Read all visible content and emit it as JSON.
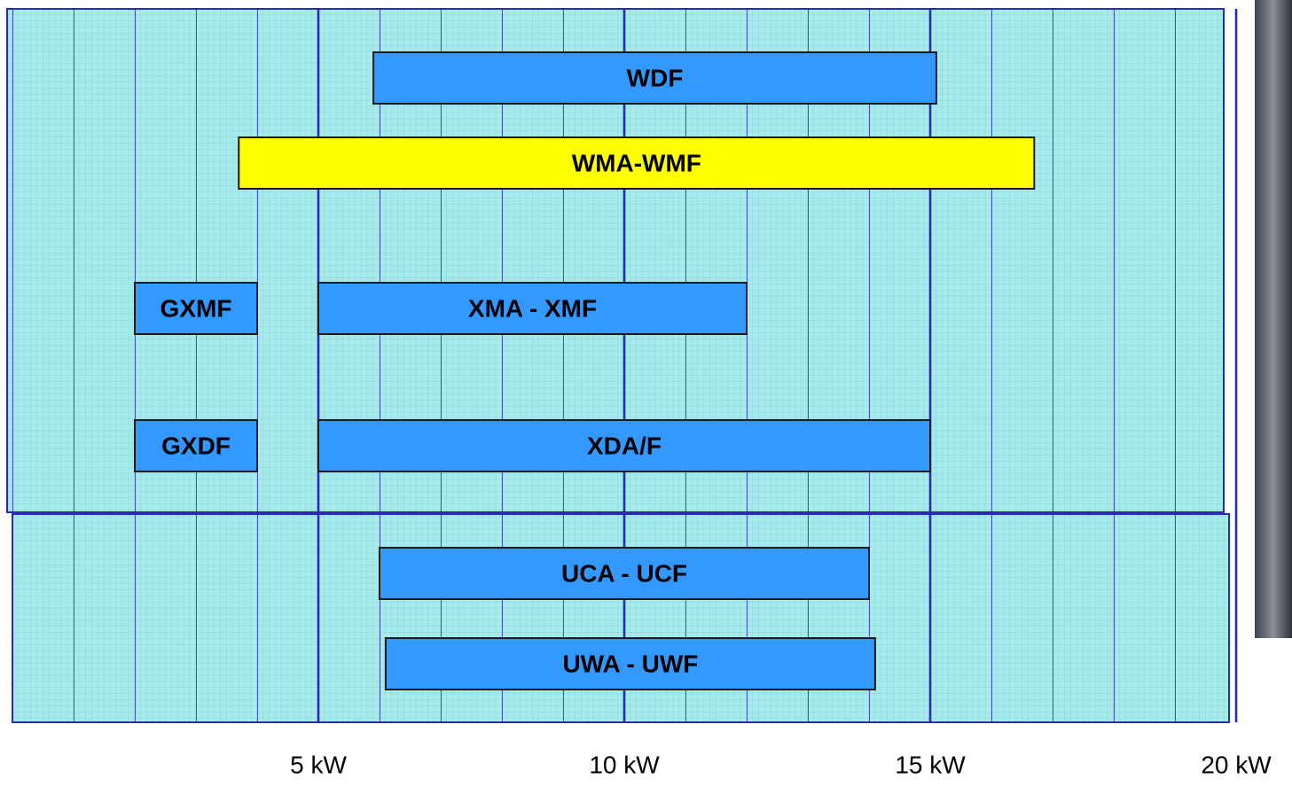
{
  "chart_data": {
    "type": "range",
    "bars": [
      {
        "label": "WDF",
        "start": 5.9,
        "end": 15.1,
        "color": "#3399ff"
      },
      {
        "label": "WMA-WMF",
        "start": 3.7,
        "end": 16.7,
        "color": "#ffff00"
      },
      {
        "label": "GXMF",
        "start": 2,
        "end": 4,
        "color": "#3399ff"
      },
      {
        "label": "XMA - XMF",
        "start": 5,
        "end": 12,
        "color": "#3399ff"
      },
      {
        "label": "GXDF",
        "start": 2,
        "end": 4,
        "color": "#3399ff"
      },
      {
        "label": "XDA/F",
        "start": 5,
        "end": 15,
        "color": "#3399ff"
      },
      {
        "label": "UCA - UCF",
        "start": 6,
        "end": 14,
        "color": "#3399ff"
      },
      {
        "label": "UWA - UWF",
        "start": 6.1,
        "end": 14.1,
        "color": "#3399ff"
      }
    ],
    "xlim": [
      0,
      20
    ],
    "xticks": [
      {
        "value": 5,
        "label": "5 kW"
      },
      {
        "value": 10,
        "label": "10 kW"
      },
      {
        "value": 15,
        "label": "15 kW"
      },
      {
        "value": 20,
        "label": "20 kW"
      }
    ],
    "grid": true
  }
}
